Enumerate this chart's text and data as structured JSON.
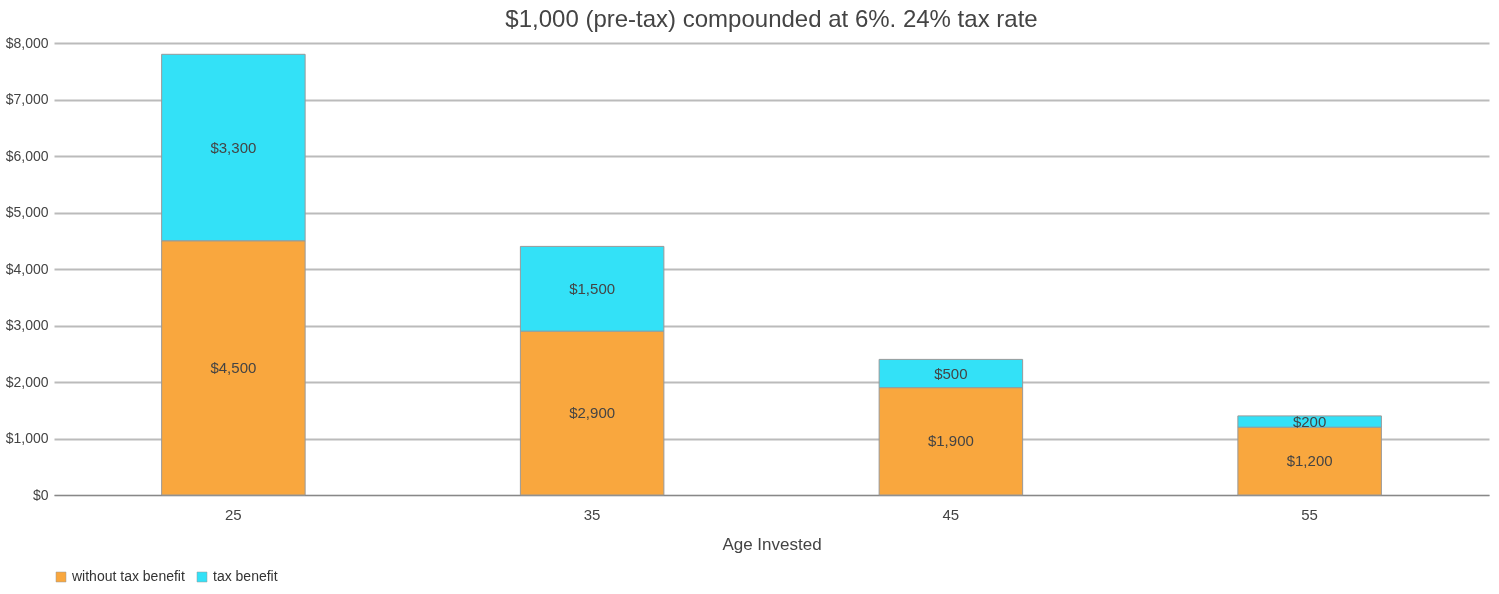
{
  "chart_data": {
    "type": "bar",
    "title": "$1,000 (pre-tax) compounded at 6%. 24% tax rate",
    "xlabel": "Age Invested",
    "categories": [
      "25",
      "35",
      "45",
      "55"
    ],
    "stacked": true,
    "series": [
      {
        "name": "without tax benefit",
        "color": "#f9a73e",
        "values": [
          4500,
          2900,
          1900,
          1200
        ],
        "value_labels": [
          "$4,500",
          "$2,900",
          "$1,900",
          "$1,200"
        ]
      },
      {
        "name": "tax benefit",
        "color": "#33e1f7",
        "values": [
          3300,
          1500,
          500,
          200
        ],
        "value_labels": [
          "$3,300",
          "$1,500",
          "$500",
          "$200"
        ]
      }
    ],
    "ylim": [
      0,
      8000
    ],
    "yticks": [
      {
        "value": 0,
        "label": "$0"
      },
      {
        "value": 1000,
        "label": "$1,000"
      },
      {
        "value": 2000,
        "label": "$2,000"
      },
      {
        "value": 3000,
        "label": "$3,000"
      },
      {
        "value": 4000,
        "label": "$4,000"
      },
      {
        "value": 5000,
        "label": "$5,000"
      },
      {
        "value": 6000,
        "label": "$6,000"
      },
      {
        "value": 7000,
        "label": "$7,000"
      },
      {
        "value": 8000,
        "label": "$8,000"
      }
    ],
    "grid": "y",
    "legend": "bottom"
  }
}
